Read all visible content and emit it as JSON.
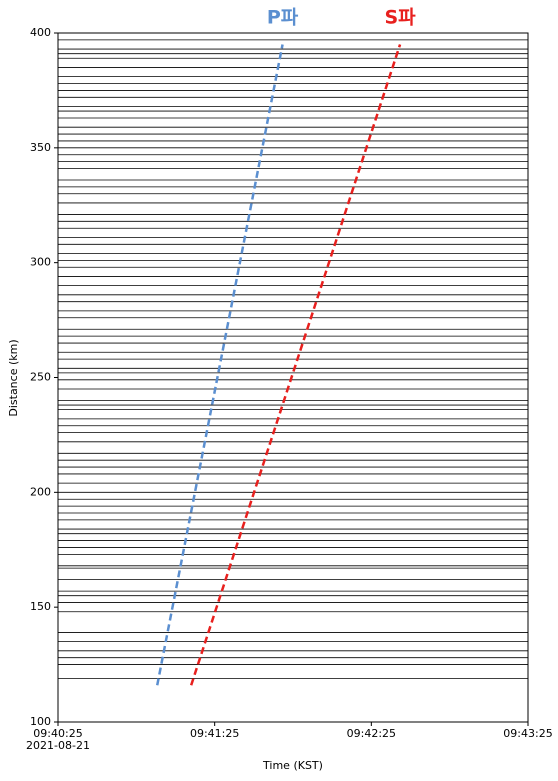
{
  "chart_data": {
    "type": "line",
    "xlabel": "Time (KST)",
    "ylabel": "Distance (km)",
    "xlim": [
      34825,
      35005
    ],
    "xticks": [
      {
        "value": 34825,
        "label": "09:40:25"
      },
      {
        "value": 34885,
        "label": "09:41:25"
      },
      {
        "value": 34945,
        "label": "09:42:25"
      },
      {
        "value": 35005,
        "label": "09:43:25"
      }
    ],
    "x_date": "2021-08-21",
    "ylim": [
      100,
      400
    ],
    "yticks": [
      100,
      150,
      200,
      250,
      300,
      350,
      400
    ],
    "trace_color": "#000000",
    "traces": [
      119,
      125,
      128,
      131,
      135,
      139,
      148,
      152,
      155,
      157,
      162,
      167,
      168,
      173,
      176,
      179,
      182,
      184,
      188,
      191,
      194,
      197,
      200,
      204,
      208,
      211,
      214,
      217,
      222,
      226,
      229,
      232,
      236,
      238,
      240,
      245,
      249,
      252,
      254,
      258,
      261,
      265,
      268,
      271,
      276,
      279,
      283,
      286,
      290,
      294,
      298,
      301,
      304,
      308,
      311,
      315,
      318,
      321,
      326,
      330,
      333,
      336,
      341,
      344,
      347,
      350,
      353,
      356,
      359,
      363,
      366,
      368,
      372,
      375,
      378,
      381,
      385,
      389,
      391,
      393,
      397
    ],
    "series": [
      {
        "name": "P파",
        "color": "#5b8fd0",
        "x": [
          34863,
          34911
        ],
        "values": [
          116,
          395
        ]
      },
      {
        "name": "S파",
        "color": "#e8201e",
        "x": [
          34876,
          34956
        ],
        "values": [
          116,
          395
        ]
      }
    ]
  }
}
